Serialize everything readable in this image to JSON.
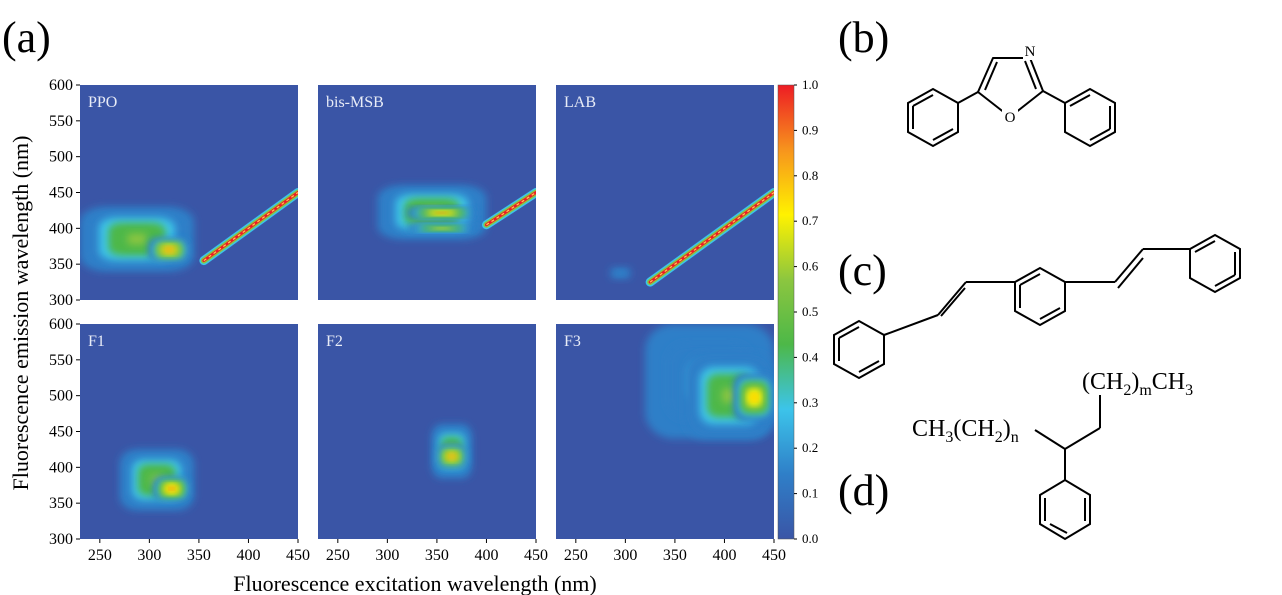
{
  "panel_labels": {
    "a": "(a)",
    "b": "(b)",
    "c": "(c)",
    "d": "(d)"
  },
  "colors": {
    "background": "#3a55a6",
    "colormap": [
      "#3a55a6",
      "#2f7fc8",
      "#3cc4ea",
      "#4db848",
      "#8cc63f",
      "#fff200",
      "#f7941d",
      "#ed1c24"
    ]
  },
  "chart_data": {
    "type": "heatmap",
    "xlabel": "Fluorescence excitation wavelength (nm)",
    "ylabel": "Fluorescence emission wavelength (nm)",
    "xlim": [
      230,
      450
    ],
    "ylim": [
      300,
      600
    ],
    "xticks": [
      "250",
      "300",
      "350",
      "400",
      "450"
    ],
    "yticks": [
      "300",
      "350",
      "400",
      "450",
      "500",
      "550",
      "600"
    ],
    "colorbar": {
      "range": [
        0.0,
        1.0
      ],
      "ticks": [
        "0.0",
        "0.1",
        "0.2",
        "0.3",
        "0.4",
        "0.5",
        "0.6",
        "0.7",
        "0.8",
        "0.9",
        "1.0"
      ]
    },
    "panels": [
      {
        "name": "PPO",
        "row": 0,
        "col": 0,
        "features": [
          {
            "kind": "blob",
            "x": [
              230,
              345
            ],
            "y": [
              340,
              430
            ],
            "peak": 0.55
          },
          {
            "kind": "blob",
            "x": [
              300,
              340
            ],
            "y": [
              355,
              385
            ],
            "peak": 0.9
          },
          {
            "kind": "scatter_line",
            "x": [
              355,
              450
            ],
            "y": [
              355,
              450
            ],
            "peak": 1.0
          }
        ]
      },
      {
        "name": "bis-MSB",
        "row": 0,
        "col": 1,
        "features": [
          {
            "kind": "blob",
            "x": [
              290,
              400
            ],
            "y": [
              385,
              460
            ],
            "peak": 0.55
          },
          {
            "kind": "blob",
            "x": [
              320,
              390
            ],
            "y": [
              415,
              428
            ],
            "peak": 0.95
          },
          {
            "kind": "blob",
            "x": [
              320,
              390
            ],
            "y": [
              395,
              405
            ],
            "peak": 0.75
          },
          {
            "kind": "scatter_line",
            "x": [
              400,
              450
            ],
            "y": [
              405,
              450
            ],
            "peak": 1.0
          }
        ]
      },
      {
        "name": "LAB",
        "row": 0,
        "col": 2,
        "features": [
          {
            "kind": "blob",
            "x": [
              285,
              305
            ],
            "y": [
              330,
              345
            ],
            "peak": 0.2
          },
          {
            "kind": "scatter_line",
            "x": [
              325,
              450
            ],
            "y": [
              325,
              450
            ],
            "peak": 1.0
          }
        ]
      },
      {
        "name": "F1",
        "row": 1,
        "col": 0,
        "features": [
          {
            "kind": "blob",
            "x": [
              270,
              345
            ],
            "y": [
              340,
              425
            ],
            "peak": 0.55
          },
          {
            "kind": "blob",
            "x": [
              305,
              340
            ],
            "y": [
              355,
              385
            ],
            "peak": 0.95
          }
        ]
      },
      {
        "name": "F2",
        "row": 1,
        "col": 1,
        "features": [
          {
            "kind": "blob",
            "x": [
              345,
              385
            ],
            "y": [
              385,
              460
            ],
            "peak": 0.55
          },
          {
            "kind": "blob",
            "x": [
              350,
              380
            ],
            "y": [
              400,
              430
            ],
            "peak": 0.9
          }
        ]
      },
      {
        "name": "F3",
        "row": 1,
        "col": 2,
        "features": [
          {
            "kind": "blob",
            "x": [
              320,
              450
            ],
            "y": [
              440,
              600
            ],
            "peak": 0.3
          },
          {
            "kind": "blob",
            "x": [
              360,
              450
            ],
            "y": [
              440,
              560
            ],
            "peak": 0.55
          },
          {
            "kind": "blob",
            "x": [
              410,
              450
            ],
            "y": [
              465,
              530
            ],
            "peak": 0.85
          }
        ]
      }
    ]
  },
  "molecules": {
    "b_atoms": [
      "N",
      "O"
    ],
    "d_formula_top": {
      "main": "(CH",
      "sub1": "2",
      "mid": ")",
      "sub2": "m",
      "end": "CH",
      "sub3": "3"
    },
    "d_formula_left": {
      "main": "CH",
      "sub1": "3",
      "mid": "(CH",
      "sub2": "2",
      "mid2": ")",
      "sub3": "n"
    }
  }
}
